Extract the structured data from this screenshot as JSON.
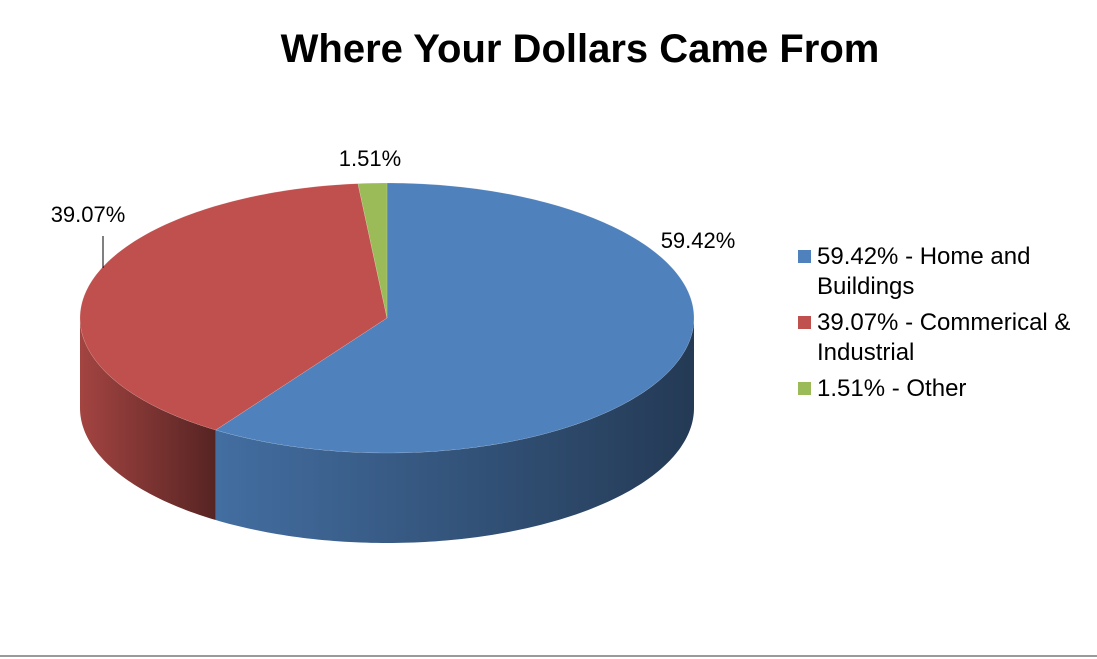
{
  "chart_data": {
    "type": "pie",
    "title": "Where Your Dollars Came From",
    "categories": [
      "59.42% - Home and Buildings",
      "39.07% - Commerical & Industrial",
      "1.51% - Other"
    ],
    "values": [
      59.42,
      39.07,
      1.51
    ],
    "value_labels": [
      "59.42%",
      "39.07%",
      "1.51%"
    ],
    "colors": [
      "#4f81bd",
      "#c0504d",
      "#9bbb59"
    ],
    "legend": "right"
  }
}
